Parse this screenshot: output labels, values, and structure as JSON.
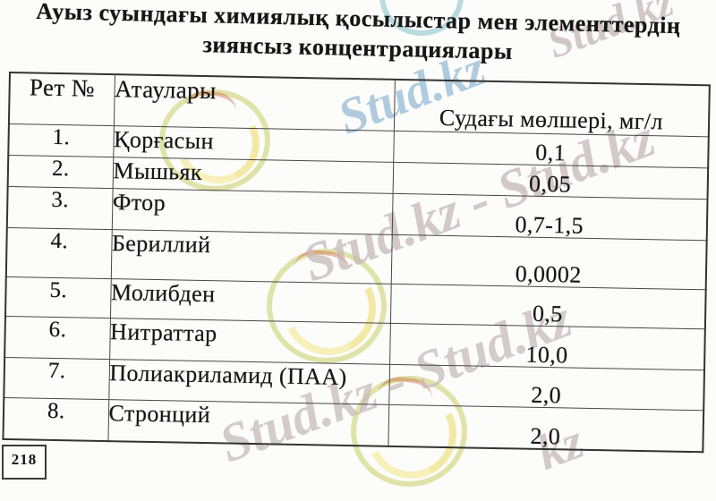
{
  "title": {
    "line1": "Ауыз суындағы химиялық қосылыстар мен элементтердің",
    "line2": "зиянсыз концентрациялары"
  },
  "table": {
    "headers": {
      "num": "Рет №",
      "name": "Атаулары",
      "amount": "Судағы мөлшері, мг/л"
    },
    "rows": [
      {
        "num": "1.",
        "name": "Қорғасын",
        "value": "0,1"
      },
      {
        "num": "2.",
        "name": "Мышьяк",
        "value": "0,05"
      },
      {
        "num": "3.",
        "name": "Фтор",
        "value": "0,7-1,5"
      },
      {
        "num": "4.",
        "name": "Бериллий",
        "value": "0,0002"
      },
      {
        "num": "5.",
        "name": "Молибден",
        "value": "0,5"
      },
      {
        "num": "6.",
        "name": "Нитраттар",
        "value": "10,0"
      },
      {
        "num": "7.",
        "name": "Полиакриламид (ПАА)",
        "value": "2,0"
      },
      {
        "num": "8.",
        "name": "Стронций",
        "value": "2,0"
      }
    ]
  },
  "page_number": "218",
  "watermark": {
    "text": "Stud.kz",
    "band": "Stud.kz - Stud.kz",
    "partial": "kz",
    "colors": {
      "cyan_text": "#a3c3da",
      "gray_text": "#c6b9b9",
      "logo_ring": "#becf46",
      "logo_fill": "#f4e882",
      "logo_red": "#cd5c3e"
    }
  }
}
